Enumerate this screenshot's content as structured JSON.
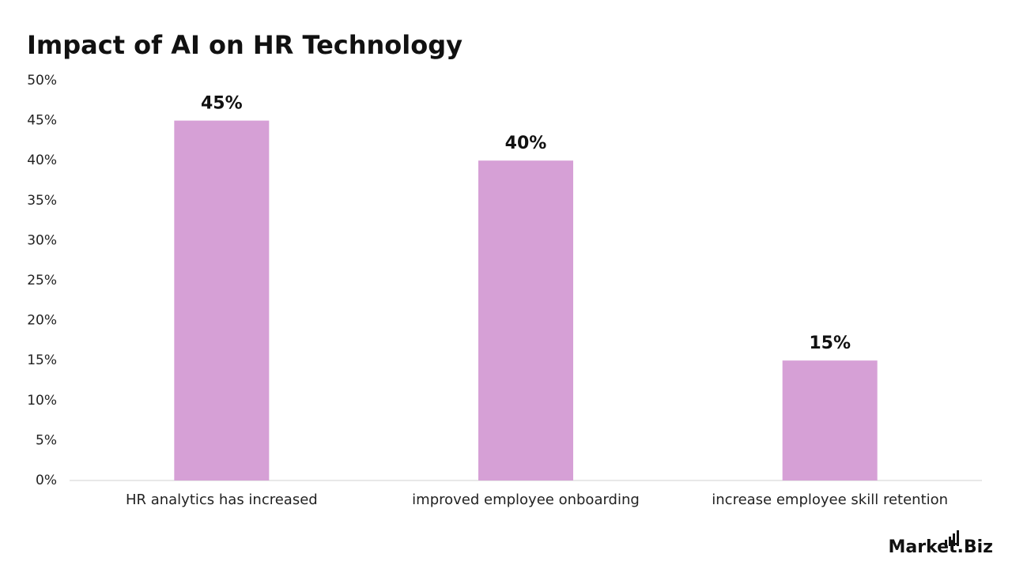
{
  "chart_data": {
    "type": "bar",
    "title": "Impact of AI on HR Technology",
    "categories": [
      "HR analytics has increased",
      "improved employee onboarding",
      "increase employee skill retention"
    ],
    "values": [
      45,
      40,
      15
    ],
    "value_labels": [
      "45%",
      "40%",
      "15%"
    ],
    "color": "#d6a0d6",
    "ylim": [
      0,
      50
    ],
    "yticks": [
      {
        "value": 0,
        "label": "0%"
      },
      {
        "value": 5,
        "label": "5%"
      },
      {
        "value": 10,
        "label": "10%"
      },
      {
        "value": 15,
        "label": "15%"
      },
      {
        "value": 20,
        "label": "20%"
      },
      {
        "value": 25,
        "label": "25%"
      },
      {
        "value": 30,
        "label": "30%"
      },
      {
        "value": 35,
        "label": "35%"
      },
      {
        "value": 40,
        "label": "40%"
      },
      {
        "value": 45,
        "label": "45%"
      },
      {
        "value": 50,
        "label": "50%"
      }
    ],
    "grid": false
  },
  "brand": "Market.Biz"
}
